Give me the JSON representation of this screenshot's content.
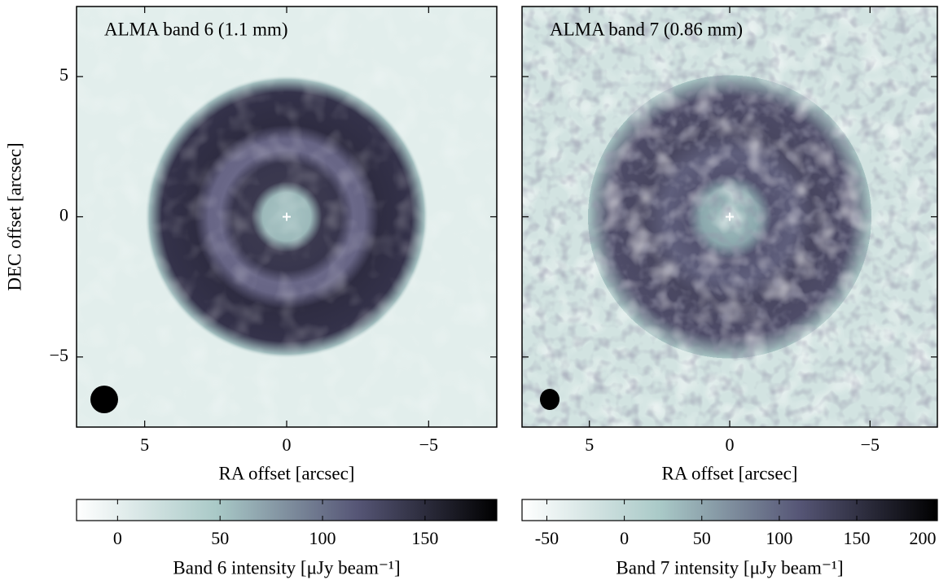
{
  "chart_data": [
    {
      "type": "image",
      "title": "ALMA band 6 (1.1 mm)",
      "xlabel": "RA offset [arcsec]",
      "ylabel": "DEC offset [arcsec]",
      "xlim": [
        7.4,
        -7.4
      ],
      "ylim": [
        -7.5,
        7.5
      ],
      "xticks": [
        5,
        0,
        {
          "value": -5,
          "label": "−5"
        }
      ],
      "yticks": [
        {
          "value": -5,
          "label": "−5"
        },
        0,
        5
      ],
      "colormap": [
        "#ffffff",
        "#a9c9c7",
        "#565676",
        "#000000"
      ],
      "colorbar": {
        "label": "Band 6 intensity [μJy beam⁻¹]",
        "lim": [
          -20,
          185
        ],
        "ticks": [
          0,
          50,
          100,
          150
        ]
      }
    },
    {
      "type": "image",
      "title": "ALMA band 7 (0.86 mm)",
      "xlabel": "RA offset [arcsec]",
      "xlim": [
        7.4,
        -7.4
      ],
      "ylim": [
        -7.5,
        7.5
      ],
      "xticks": [
        5,
        0,
        {
          "value": -5,
          "label": "−5"
        }
      ],
      "yticks": [
        -5,
        0,
        5
      ],
      "colormap": [
        "#ffffff",
        "#a9c9c7",
        "#565676",
        "#000000"
      ],
      "colorbar": {
        "label": "Band 7 intensity [μJy beam⁻¹]",
        "lim": [
          -66,
          202
        ],
        "ticks": [
          -50,
          0,
          50,
          100,
          150,
          200
        ]
      }
    }
  ]
}
